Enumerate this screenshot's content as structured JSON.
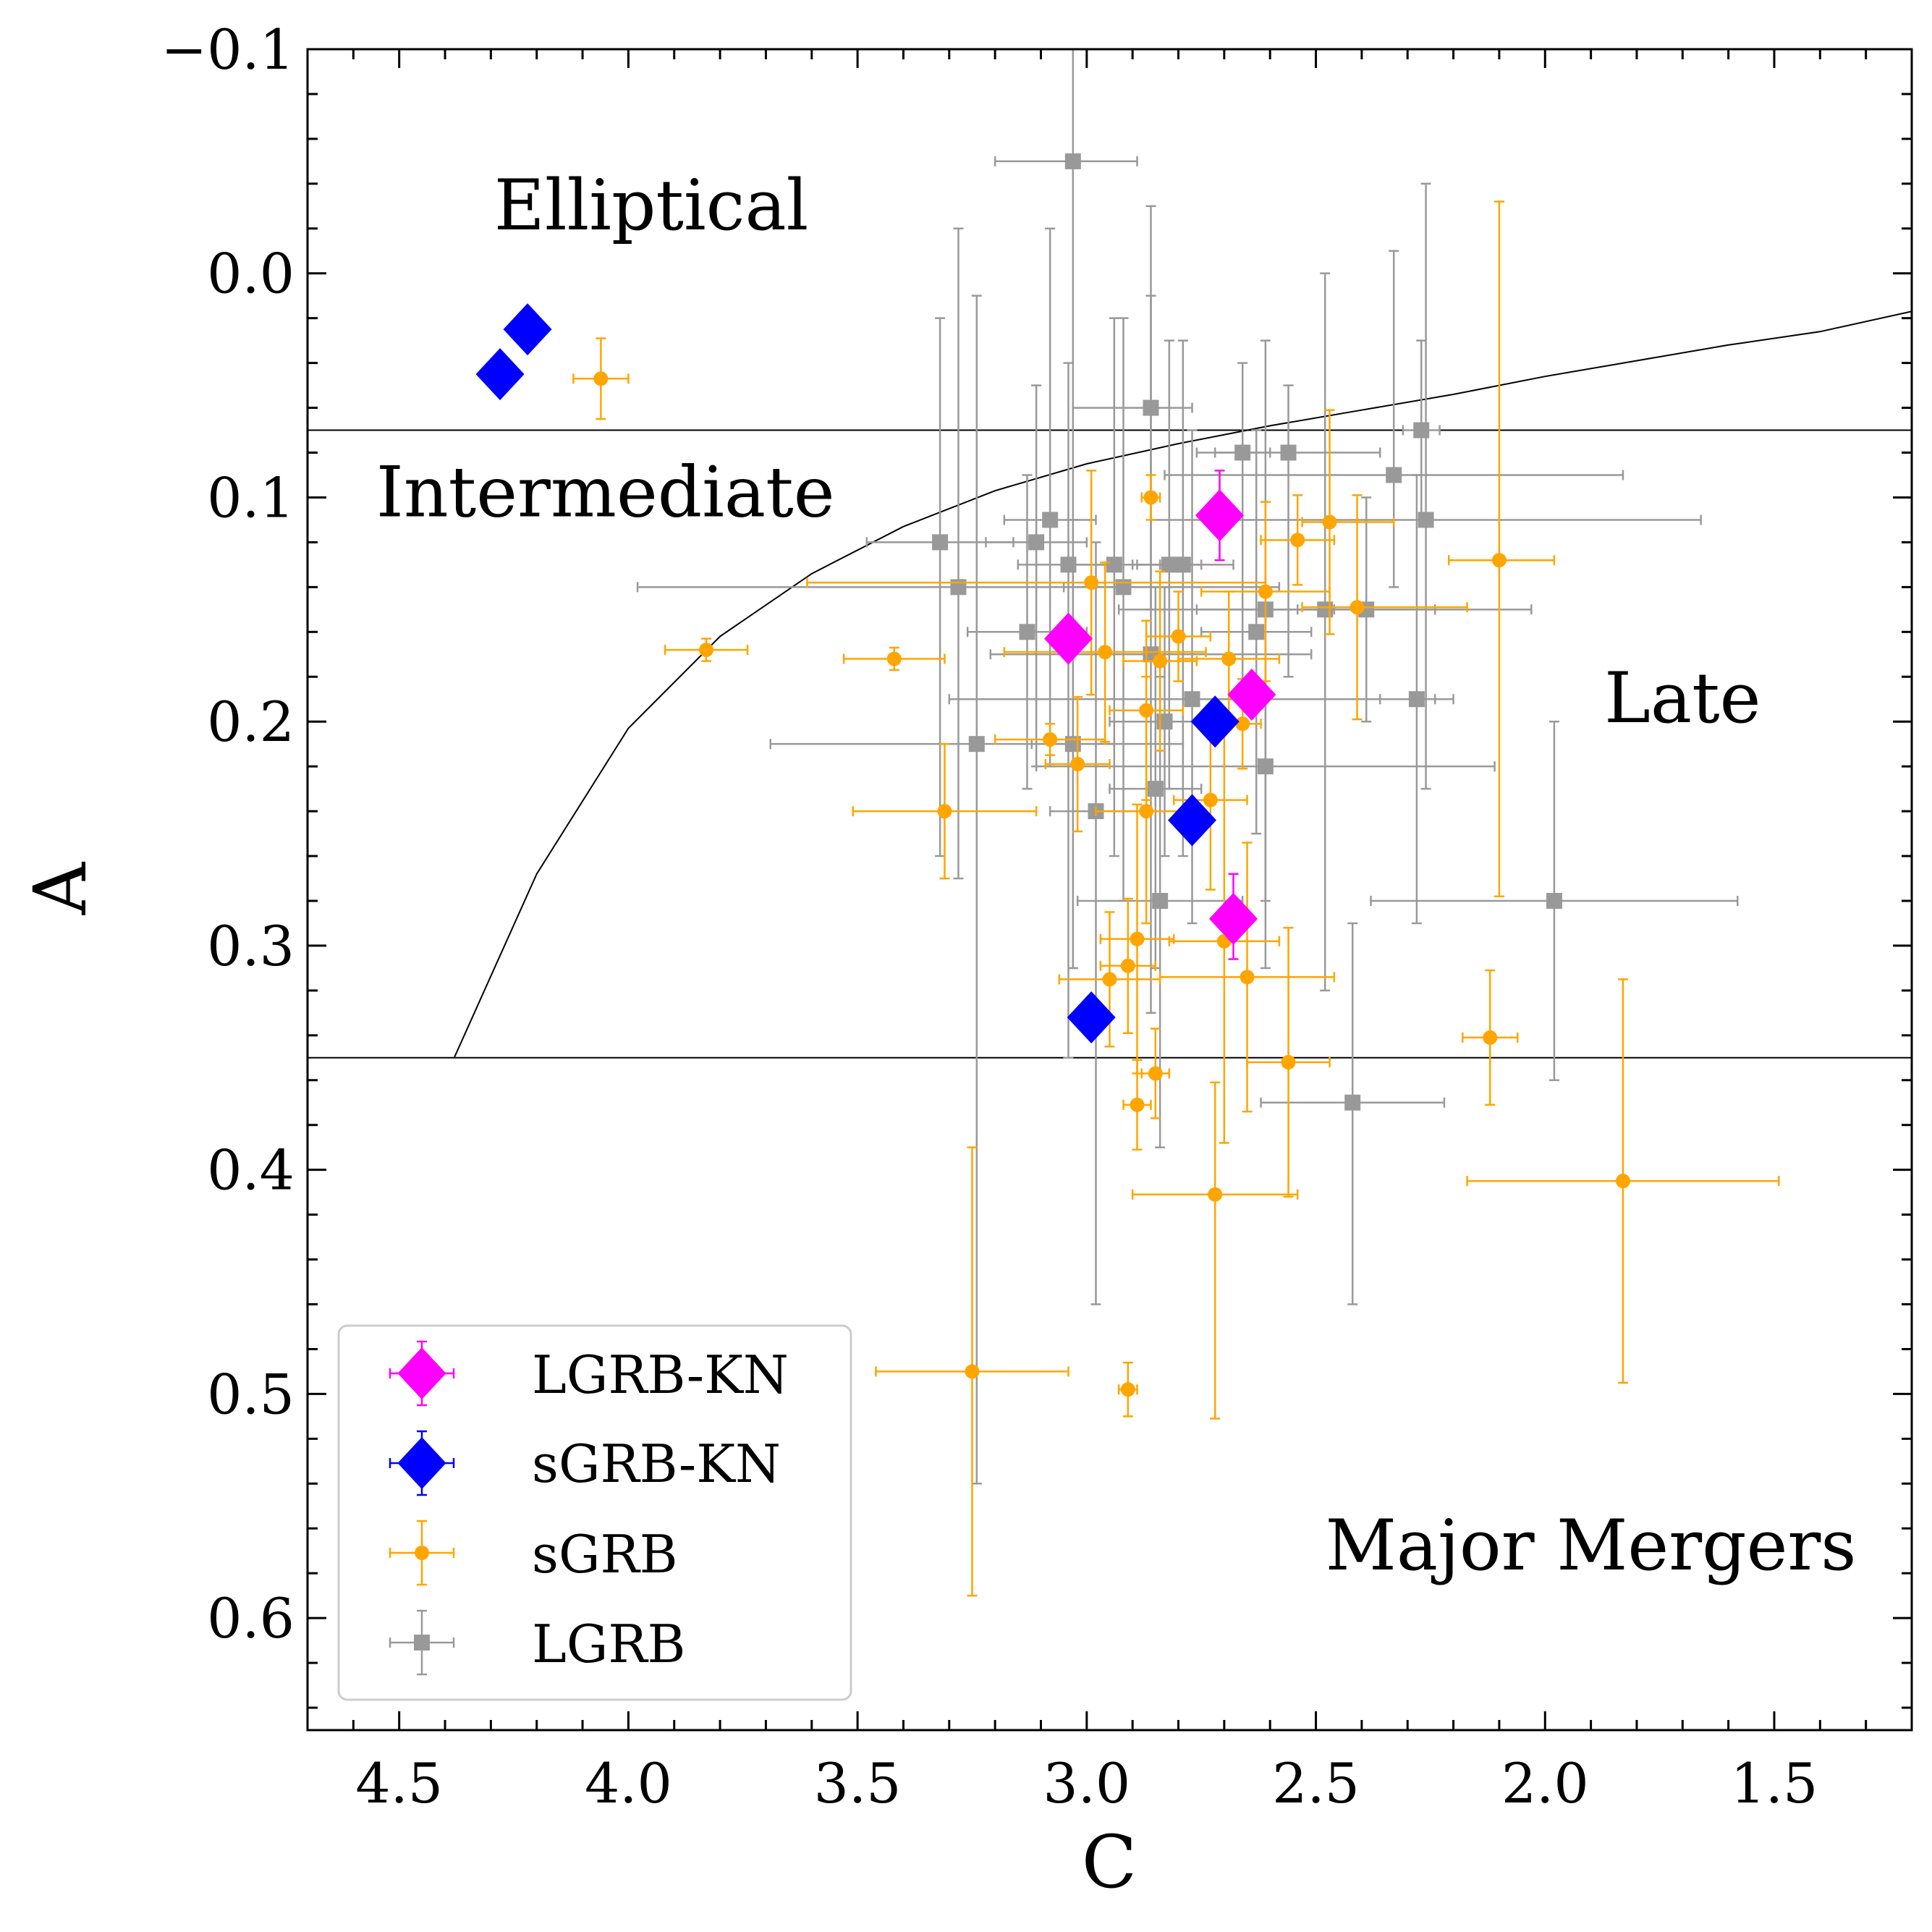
{
  "chart_data": {
    "type": "scatter",
    "title": "",
    "xlabel": "C",
    "ylabel": "A",
    "xlim": [
      4.7,
      1.2
    ],
    "ylim": [
      0.65,
      -0.1
    ],
    "x_inverted": true,
    "y_inverted": true,
    "x_ticks": [
      4.5,
      4.0,
      3.5,
      3.0,
      2.5,
      2.0,
      1.5
    ],
    "x_tick_labels": [
      "4.5",
      "4.0",
      "3.5",
      "3.0",
      "2.5",
      "2.0",
      "1.5"
    ],
    "y_ticks": [
      -0.1,
      0.0,
      0.1,
      0.2,
      0.3,
      0.4,
      0.5,
      0.6
    ],
    "y_tick_labels": [
      "−0.1",
      "0.0",
      "0.1",
      "0.2",
      "0.3",
      "0.4",
      "0.5",
      "0.6"
    ],
    "region_labels": [
      {
        "text": "Elliptical",
        "c": 3.95,
        "a": -0.03
      },
      {
        "text": "Intermediate",
        "c": 4.05,
        "a": 0.098
      },
      {
        "text": "Late",
        "c": 1.7,
        "a": 0.19
      },
      {
        "text": "Major Mergers",
        "c": 1.9,
        "a": 0.568
      }
    ],
    "dividers": {
      "horizontal_lines": [
        0.07,
        0.35
      ],
      "curve": [
        [
          4.38,
          0.35
        ],
        [
          4.2,
          0.268
        ],
        [
          4.0,
          0.203
        ],
        [
          3.8,
          0.162
        ],
        [
          3.6,
          0.134
        ],
        [
          3.4,
          0.113
        ],
        [
          3.2,
          0.097
        ],
        [
          3.0,
          0.085
        ],
        [
          2.8,
          0.076
        ],
        [
          2.6,
          0.068
        ],
        [
          2.4,
          0.061
        ],
        [
          2.2,
          0.054
        ],
        [
          2.0,
          0.046
        ],
        [
          1.8,
          0.039
        ],
        [
          1.6,
          0.032
        ],
        [
          1.4,
          0.026
        ],
        [
          1.2,
          0.017
        ]
      ]
    },
    "legend": {
      "position": "lower-left",
      "entries": [
        "LGRB-KN",
        "sGRB-KN",
        "sGRB",
        "LGRB"
      ]
    },
    "series": [
      {
        "name": "LGRB",
        "marker": "square",
        "color": "#999999",
        "points": [
          [
            3.03,
            -0.05,
            0.17,
            0.14,
            0.08,
            0.36
          ],
          [
            2.86,
            0.06,
            0.17,
            0.09,
            0.09,
            0.09
          ],
          [
            2.27,
            0.07,
            0.04,
            0.04,
            0.04,
            0.04
          ],
          [
            2.56,
            0.08,
            0.2,
            0.2,
            0.03,
            0.1
          ],
          [
            2.66,
            0.08,
            0.06,
            0.06,
            0.04,
            0.11
          ],
          [
            2.33,
            0.09,
            0.5,
            0.5,
            0.1,
            0.05
          ],
          [
            3.32,
            0.12,
            0.16,
            0.16,
            0.1,
            0.14
          ],
          [
            3.11,
            0.12,
            0.11,
            0.11,
            0.07,
            0.1
          ],
          [
            3.08,
            0.11,
            0.1,
            0.1,
            0.13,
            0.11
          ],
          [
            2.26,
            0.11,
            0.6,
            0.6,
            0.15,
            0.12
          ],
          [
            3.04,
            0.13,
            0.11,
            0.11,
            0.09,
            0.22
          ],
          [
            2.94,
            0.13,
            0.1,
            0.1,
            0.11,
            0.13
          ],
          [
            2.82,
            0.13,
            0.07,
            0.07,
            0.1,
            0.1
          ],
          [
            2.79,
            0.13,
            0.11,
            0.11,
            0.1,
            0.13
          ],
          [
            3.28,
            0.14,
            0.7,
            0.7,
            0.16,
            0.13
          ],
          [
            2.92,
            0.14,
            0.13,
            0.13,
            0.12,
            0.14
          ],
          [
            2.61,
            0.15,
            0.15,
            0.15,
            0.12,
            0.13
          ],
          [
            2.48,
            0.15,
            0.45,
            0.45,
            0.15,
            0.17
          ],
          [
            2.39,
            0.15,
            0.15,
            0.15,
            0.05,
            0.05
          ],
          [
            3.13,
            0.16,
            0.13,
            0.13,
            0.07,
            0.07
          ],
          [
            2.63,
            0.16,
            0.12,
            0.12,
            0.09,
            0.09
          ],
          [
            2.86,
            0.17,
            0.35,
            0.35,
            0.16,
            0.16
          ],
          [
            2.28,
            0.19,
            0.08,
            0.08,
            0.1,
            0.1
          ],
          [
            2.77,
            0.19,
            0.53,
            0.53,
            0.12,
            0.1
          ],
          [
            2.83,
            0.2,
            0.12,
            0.12,
            0.06,
            0.06
          ],
          [
            3.24,
            0.21,
            0.45,
            0.45,
            0.2,
            0.33
          ],
          [
            3.03,
            0.21,
            0.09,
            0.09,
            0.1,
            0.1
          ],
          [
            2.61,
            0.22,
            0.5,
            0.5,
            0.07,
            0.09
          ],
          [
            2.85,
            0.23,
            0.1,
            0.1,
            0.09,
            0.08
          ],
          [
            2.98,
            0.24,
            0.1,
            0.1,
            0.12,
            0.22
          ],
          [
            2.84,
            0.28,
            0.18,
            0.18,
            0.1,
            0.11
          ],
          [
            1.98,
            0.28,
            0.4,
            0.4,
            0.08,
            0.08
          ],
          [
            2.42,
            0.37,
            0.2,
            0.2,
            0.08,
            0.09
          ]
        ]
      },
      {
        "name": "sGRB",
        "marker": "circle",
        "color": "#ffa500",
        "points": [
          [
            4.06,
            0.047,
            0.06,
            0.06,
            0.018,
            0.018
          ],
          [
            2.86,
            0.1,
            0.02,
            0.02,
            0.01,
            0.01
          ],
          [
            2.47,
            0.111,
            0.06,
            0.14,
            0.05,
            0.05
          ],
          [
            2.1,
            0.128,
            0.11,
            0.12,
            0.16,
            0.15
          ],
          [
            2.54,
            0.119,
            0.08,
            0.08,
            0.02,
            0.02
          ],
          [
            2.99,
            0.138,
            0.62,
            0.38,
            0.05,
            0.05
          ],
          [
            2.61,
            0.142,
            0.14,
            0.14,
            0.04,
            0.04
          ],
          [
            2.41,
            0.149,
            0.12,
            0.24,
            0.05,
            0.05
          ],
          [
            3.83,
            0.168,
            0.09,
            0.09,
            0.005,
            0.005
          ],
          [
            3.42,
            0.172,
            0.11,
            0.11,
            0.005,
            0.005
          ],
          [
            2.96,
            0.169,
            0.22,
            0.22,
            0.04,
            0.04
          ],
          [
            2.84,
            0.173,
            0.08,
            0.08,
            0.04,
            0.04
          ],
          [
            2.69,
            0.172,
            0.11,
            0.11,
            0.03,
            0.03
          ],
          [
            2.8,
            0.162,
            0.07,
            0.07,
            0.02,
            0.02
          ],
          [
            2.87,
            0.195,
            0.08,
            0.08,
            0.04,
            0.04
          ],
          [
            2.66,
            0.201,
            0.04,
            0.04,
            0.02,
            0.02
          ],
          [
            3.08,
            0.208,
            0.12,
            0.12,
            0.007,
            0.007
          ],
          [
            3.02,
            0.219,
            0.07,
            0.07,
            0.03,
            0.03
          ],
          [
            2.73,
            0.235,
            0.08,
            0.08,
            0.04,
            0.04
          ],
          [
            3.31,
            0.24,
            0.2,
            0.2,
            0.03,
            0.03
          ],
          [
            2.87,
            0.24,
            0.11,
            0.11,
            0.06,
            0.05
          ],
          [
            2.89,
            0.297,
            0.08,
            0.08,
            0.06,
            0.06
          ],
          [
            2.7,
            0.298,
            0.12,
            0.12,
            0.1,
            0.09
          ],
          [
            2.91,
            0.309,
            0.06,
            0.06,
            0.03,
            0.03
          ],
          [
            2.95,
            0.315,
            0.11,
            0.11,
            0.03,
            0.03
          ],
          [
            2.65,
            0.314,
            0.19,
            0.19,
            0.06,
            0.06
          ],
          [
            2.56,
            0.352,
            0.09,
            0.09,
            0.06,
            0.06
          ],
          [
            2.85,
            0.357,
            0.03,
            0.03,
            0.02,
            0.02
          ],
          [
            2.89,
            0.371,
            0.03,
            0.03,
            0.02,
            0.02
          ],
          [
            2.12,
            0.341,
            0.06,
            0.06,
            0.03,
            0.03
          ],
          [
            2.72,
            0.411,
            0.18,
            0.18,
            0.05,
            0.1
          ],
          [
            1.83,
            0.405,
            0.34,
            0.34,
            0.09,
            0.09
          ],
          [
            3.25,
            0.49,
            0.21,
            0.21,
            0.1,
            0.1
          ],
          [
            2.91,
            0.498,
            0.02,
            0.02,
            0.012,
            0.012
          ]
        ]
      },
      {
        "name": "sGRB-KN",
        "marker": "diamond",
        "color": "#0000ff",
        "points": [
          [
            4.22,
            0.025,
            0,
            0,
            0,
            0
          ],
          [
            4.28,
            0.045,
            0,
            0,
            0,
            0
          ],
          [
            2.72,
            0.2,
            0,
            0,
            0,
            0
          ],
          [
            2.77,
            0.244,
            0,
            0,
            0,
            0
          ],
          [
            2.99,
            0.332,
            0,
            0,
            0,
            0
          ]
        ]
      },
      {
        "name": "LGRB-KN",
        "marker": "diamond",
        "color": "#ff00ff",
        "points": [
          [
            2.71,
            0.108,
            0.04,
            0.04,
            0.02,
            0.02
          ],
          [
            3.04,
            0.163,
            0,
            0,
            0,
            0
          ],
          [
            2.64,
            0.188,
            0,
            0,
            0,
            0
          ],
          [
            2.68,
            0.288,
            0,
            0,
            0.02,
            0.018
          ]
        ]
      }
    ]
  }
}
